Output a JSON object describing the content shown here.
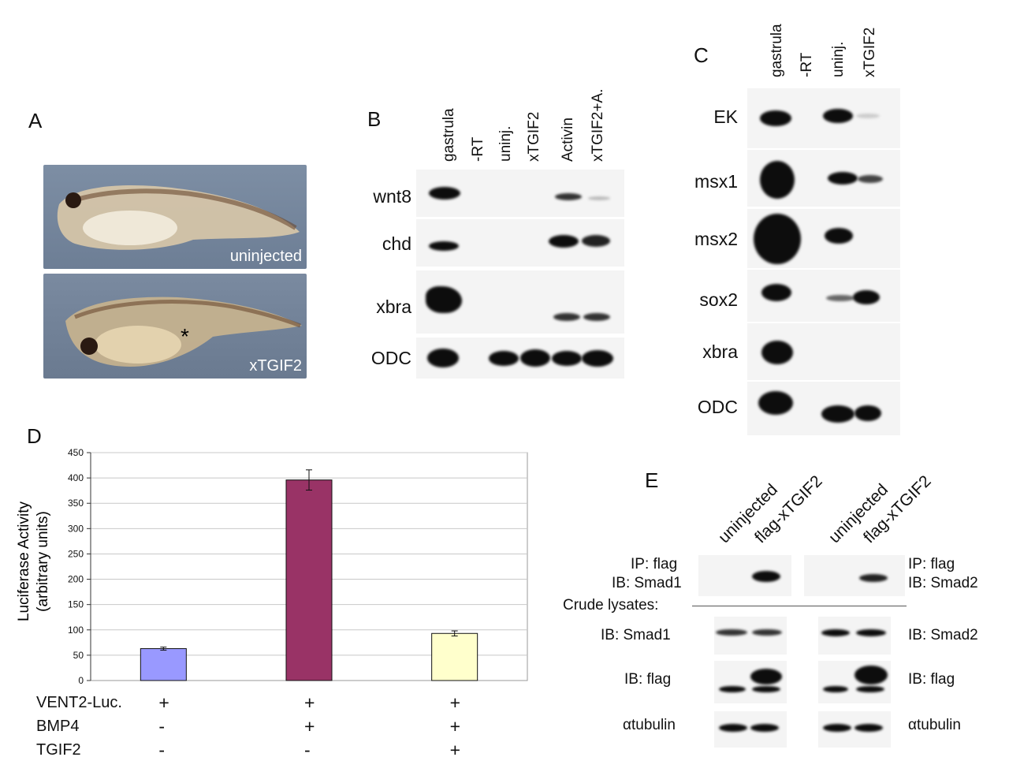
{
  "panels": {
    "A": "A",
    "B": "B",
    "C": "C",
    "D": "D",
    "E": "E"
  },
  "panelA": {
    "top_label": "uninjected",
    "bottom_label": "xTGIF2",
    "asterisk": "*"
  },
  "panelB": {
    "lanes": [
      "gastrula",
      "-RT",
      "uninj.",
      "xTGIF2",
      "Activin",
      "xTGIF2+A."
    ],
    "rows": [
      "wnt8",
      "chd",
      "xbra",
      "ODC"
    ]
  },
  "panelC": {
    "lanes": [
      "gastrula",
      "-RT",
      "uninj.",
      "xTGIF2"
    ],
    "rows": [
      "EK",
      "msx1",
      "msx2",
      "sox2",
      "xbra",
      "ODC"
    ]
  },
  "panelE": {
    "lanes_left": [
      "uninjected",
      "flag-xTGIF2"
    ],
    "lanes_right": [
      "uninjected",
      "flag-xTGIF2"
    ],
    "ip_left_1": "IP: flag",
    "ip_left_2": "IB: Smad1",
    "ip_right_1": "IP: flag",
    "ip_right_2": "IB: Smad2",
    "crude": "Crude lysates:",
    "rows_left": [
      "IB: Smad1",
      "IB: flag",
      "αtubulin"
    ],
    "rows_right": [
      "IB: Smad2",
      "IB: flag",
      "αtubulin"
    ]
  },
  "chart_data": {
    "type": "bar",
    "ylabel_line1": "Luciferase Activity",
    "ylabel_line2": "(arbitrary units)",
    "ylim": [
      0,
      450
    ],
    "yticks": [
      0,
      50,
      100,
      150,
      200,
      250,
      300,
      350,
      400,
      450
    ],
    "values": [
      63,
      396,
      93
    ],
    "errors": [
      3,
      20,
      5
    ],
    "colors": [
      "#9999ff",
      "#993366",
      "#ffffcc"
    ],
    "grid": true,
    "conditions": [
      {
        "name": "VENT2-Luc.",
        "signs": [
          "+",
          "+",
          "+"
        ]
      },
      {
        "name": "BMP4",
        "signs": [
          "-",
          "+",
          "+"
        ]
      },
      {
        "name": "TGIF2",
        "signs": [
          "-",
          "-",
          "+"
        ]
      }
    ]
  }
}
